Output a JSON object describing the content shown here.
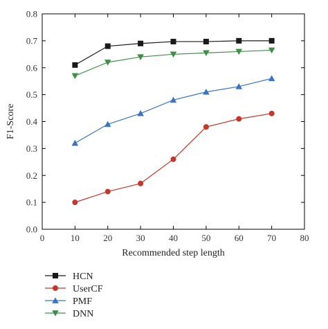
{
  "chart_data": {
    "type": "line",
    "title": "",
    "xlabel": "Recommended step length",
    "ylabel": "F1-Score",
    "xlim": [
      0,
      80
    ],
    "ylim": [
      0,
      0.8
    ],
    "x_ticks": [
      "0",
      "10",
      "20",
      "30",
      "40",
      "50",
      "60",
      "70",
      "80"
    ],
    "y_ticks": [
      "0.0",
      "0.1",
      "0.2",
      "0.3",
      "0.4",
      "0.5",
      "0.6",
      "0.7",
      "0.8"
    ],
    "grid": false,
    "legend_position": "below",
    "x": [
      10,
      20,
      30,
      40,
      50,
      60,
      70
    ],
    "series": [
      {
        "name": "HCN",
        "color": "#1a1a1a",
        "marker": "square",
        "values": [
          0.61,
          0.68,
          0.69,
          0.697,
          0.697,
          0.7,
          0.7
        ]
      },
      {
        "name": "UserCF",
        "color": "#c0392b",
        "marker": "circle",
        "values": [
          0.1,
          0.14,
          0.17,
          0.26,
          0.38,
          0.41,
          0.43
        ]
      },
      {
        "name": "PMF",
        "color": "#3a73c4",
        "marker": "triangle-up",
        "values": [
          0.32,
          0.39,
          0.43,
          0.48,
          0.51,
          0.53,
          0.56
        ]
      },
      {
        "name": "DNN",
        "color": "#3f8f48",
        "marker": "triangle-down",
        "values": [
          0.57,
          0.62,
          0.64,
          0.65,
          0.655,
          0.66,
          0.665
        ]
      }
    ]
  }
}
